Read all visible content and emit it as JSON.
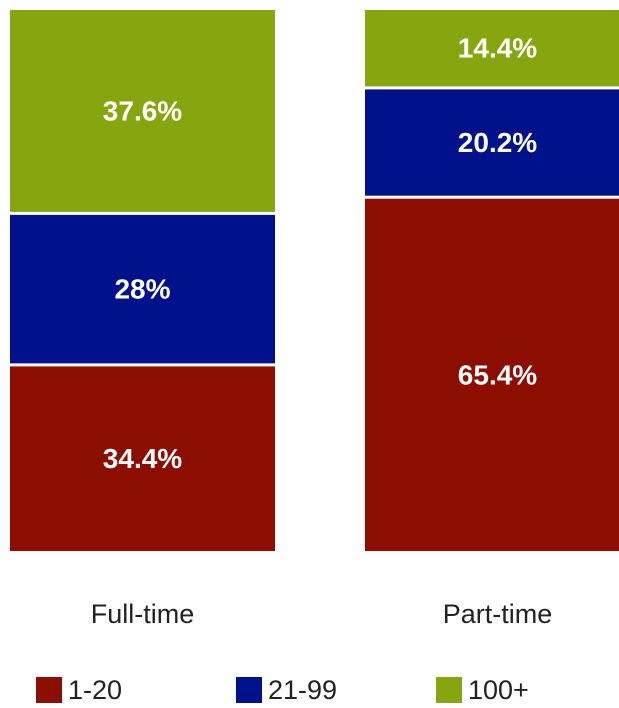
{
  "chart_data": {
    "type": "bar",
    "stacked": true,
    "categories": [
      "Full-time",
      "Part-time"
    ],
    "series": [
      {
        "name": "1-20",
        "color": "#8b0e00",
        "values": [
          34.4,
          65.4
        ],
        "labels": [
          "34.4%",
          "65.4%"
        ]
      },
      {
        "name": "21-99",
        "color": "#00118c",
        "values": [
          28,
          20.2
        ],
        "labels": [
          "28%",
          "20.2%"
        ]
      },
      {
        "name": "100+",
        "color": "#86a50e",
        "values": [
          37.6,
          14.4
        ],
        "labels": [
          "37.6%",
          "14.4%"
        ]
      }
    ],
    "ylim": [
      0,
      100
    ],
    "grid": false,
    "legend_position": "bottom"
  }
}
